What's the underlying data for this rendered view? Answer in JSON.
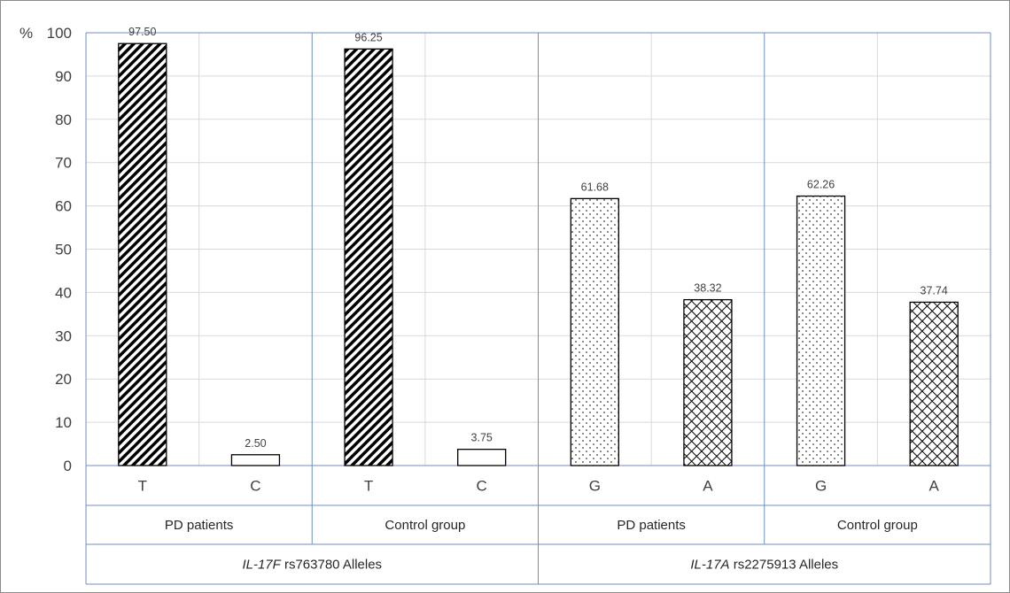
{
  "chart_data": {
    "type": "bar",
    "y_unit_label": "%",
    "ylim": [
      0,
      100
    ],
    "yticks": [
      0,
      10,
      20,
      30,
      40,
      50,
      60,
      70,
      80,
      90,
      100
    ],
    "grid": true,
    "bars": [
      {
        "allele": "T",
        "value": 97.5,
        "label": "97.50",
        "pattern": "diagonal"
      },
      {
        "allele": "C",
        "value": 2.5,
        "label": "2.50",
        "pattern": "none"
      },
      {
        "allele": "T",
        "value": 96.25,
        "label": "96.25",
        "pattern": "diagonal"
      },
      {
        "allele": "C",
        "value": 3.75,
        "label": "3.75",
        "pattern": "none"
      },
      {
        "allele": "G",
        "value": 61.68,
        "label": "61.68",
        "pattern": "dots"
      },
      {
        "allele": "A",
        "value": 38.32,
        "label": "38.32",
        "pattern": "crosshatch"
      },
      {
        "allele": "G",
        "value": 62.26,
        "label": "62.26",
        "pattern": "dots"
      },
      {
        "allele": "A",
        "value": 37.74,
        "label": "37.74",
        "pattern": "crosshatch"
      }
    ],
    "groups": [
      {
        "label": "PD patients",
        "span": [
          0,
          1
        ]
      },
      {
        "label": "Control group",
        "span": [
          2,
          3
        ]
      },
      {
        "label": "PD patients",
        "span": [
          4,
          5
        ]
      },
      {
        "label": "Control group",
        "span": [
          6,
          7
        ]
      }
    ],
    "loci": [
      {
        "gene": "IL-17F",
        "rest": " rs763780 Alleles",
        "span": [
          0,
          3
        ]
      },
      {
        "gene": "IL-17A",
        "rest": " rs2275913 Alleles",
        "span": [
          4,
          7
        ]
      }
    ],
    "colors": {
      "bar_stroke": "#000000",
      "grid": "#d9d9d9",
      "separator": "#6f8fc4",
      "text": "#404040"
    }
  }
}
